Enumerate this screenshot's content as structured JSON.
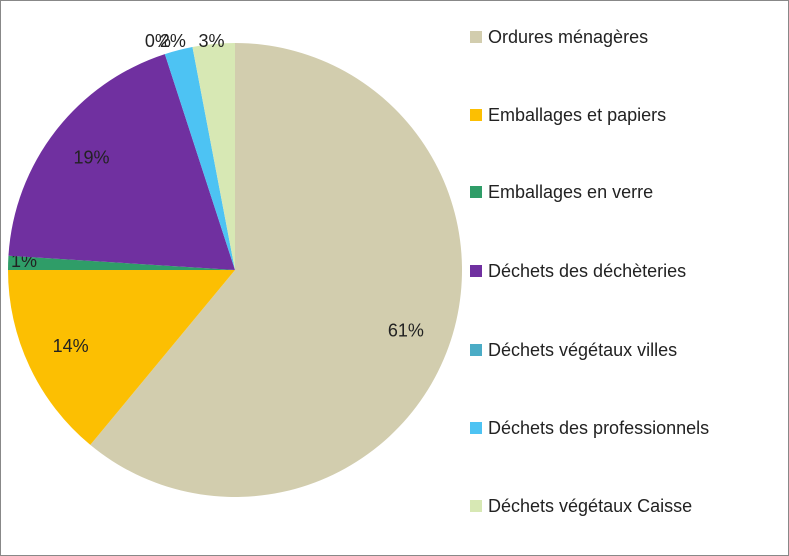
{
  "chart_data": {
    "type": "pie",
    "categories": [
      "Ordures ménagères",
      "Emballages et papiers",
      "Emballages en verre",
      "Déchets des déchèteries",
      "Déchets végétaux villes",
      "Déchets des professionnels",
      "Déchets végétaux Caisse"
    ],
    "values": [
      61,
      14,
      1,
      19,
      0,
      2,
      3
    ],
    "value_labels": [
      "61%",
      "14%",
      "1%",
      "19%",
      "0%",
      "2%",
      "3%"
    ],
    "colors": [
      "#d2cdae",
      "#fcbf02",
      "#2f9d68",
      "#7030a0",
      "#4bacc6",
      "#4dc3f3",
      "#d7e8b4"
    ],
    "legend": "right"
  }
}
